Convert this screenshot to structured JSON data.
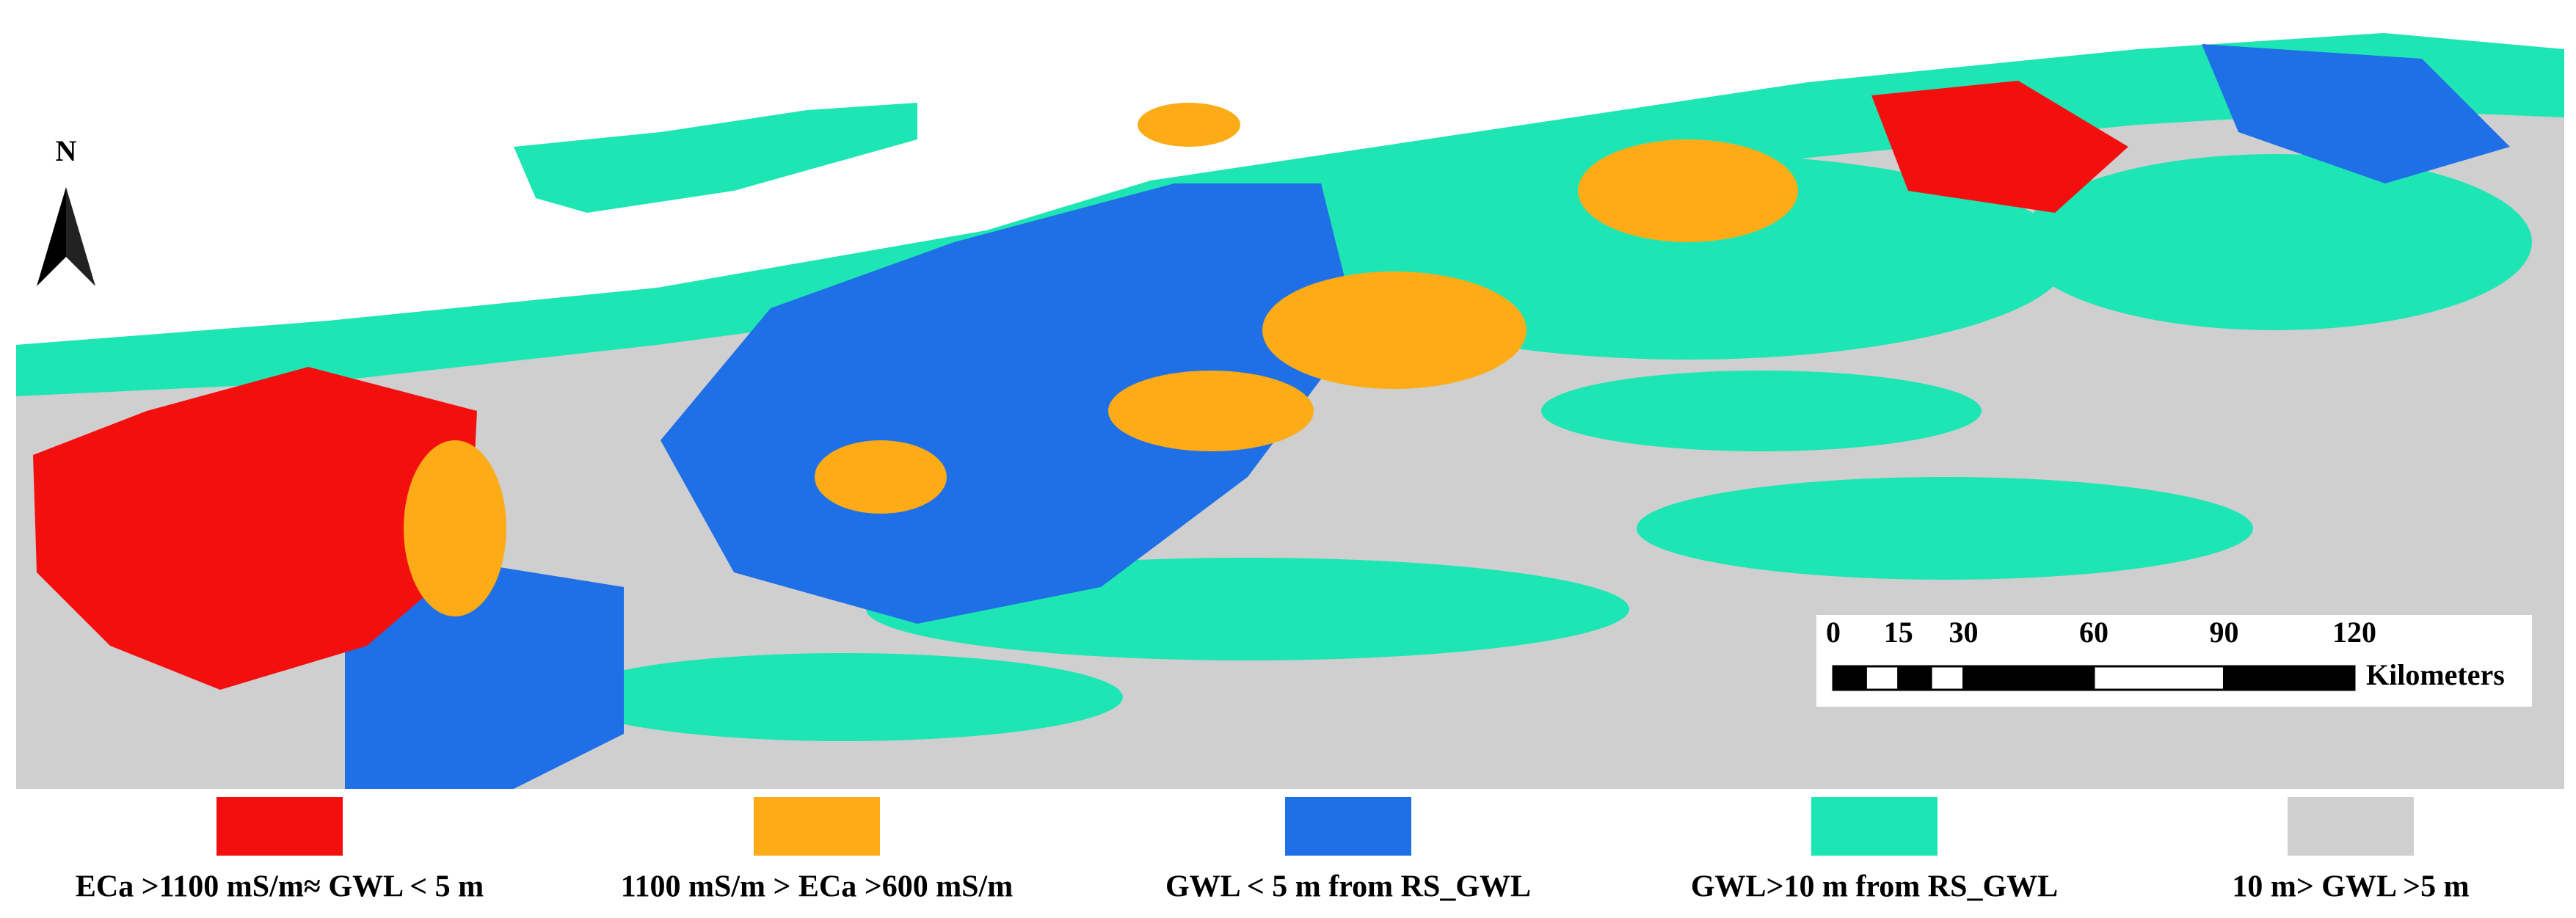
{
  "north_arrow": {
    "label": "N"
  },
  "scale_bar": {
    "ticks": [
      0,
      15,
      30,
      60,
      90,
      120
    ],
    "unit": "Kilometers"
  },
  "legend": [
    {
      "label": "ECa >1100 mS/m≈ GWL < 5 m",
      "color": "#f40f0f"
    },
    {
      "label": "1100 mS/m > ECa >600 mS/m",
      "color": "#fdab17"
    },
    {
      "label": "GWL < 5 m from RS_GWL",
      "color": "#1f6fe6"
    },
    {
      "label": "GWL>10 m from RS_GWL",
      "color": "#1de6b4"
    },
    {
      "label": "10 m> GWL >5 m",
      "color": "#cfcfcf"
    }
  ]
}
